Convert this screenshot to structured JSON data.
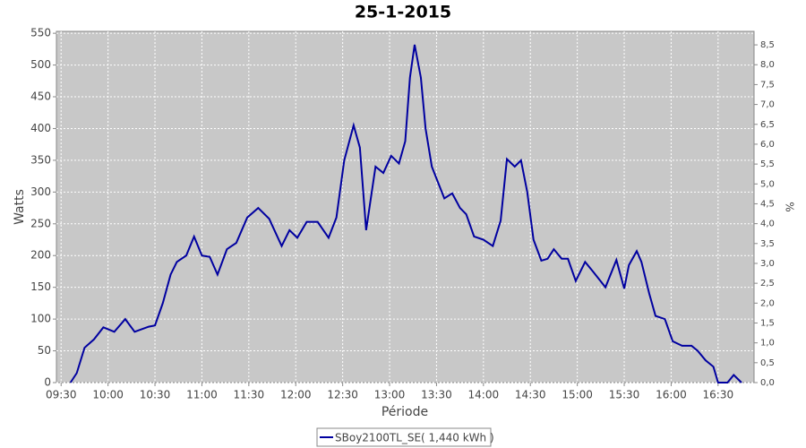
{
  "chart_data": {
    "type": "line",
    "title": "25-1-2015",
    "x_label": "Période",
    "y_label": "Watts",
    "y2_label": "%",
    "x": [
      "09:36",
      "09:40",
      "09:45",
      "09:51",
      "09:57",
      "10:04",
      "10:11",
      "10:17",
      "10:26",
      "10:30",
      "10:35",
      "10:40",
      "10:44",
      "10:50",
      "10:55",
      "11:00",
      "11:05",
      "11:10",
      "11:16",
      "11:22",
      "11:29",
      "11:36",
      "11:43",
      "11:51",
      "11:56",
      "12:01",
      "12:07",
      "12:14",
      "12:21",
      "12:26",
      "12:31",
      "12:37",
      "12:41",
      "12:45",
      "12:51",
      "12:56",
      "13:01",
      "13:06",
      "13:10",
      "13:13",
      "13:16",
      "13:20",
      "13:23",
      "13:27",
      "13:31",
      "13:35",
      "13:40",
      "13:45",
      "13:49",
      "13:54",
      "14:00",
      "14:06",
      "14:11",
      "14:15",
      "14:20",
      "14:24",
      "14:28",
      "14:32",
      "14:37",
      "14:41",
      "14:45",
      "14:50",
      "14:54",
      "14:59",
      "15:05",
      "15:10",
      "15:18",
      "15:25",
      "15:30",
      "15:33",
      "15:38",
      "15:41",
      "15:46",
      "15:50",
      "15:56",
      "16:01",
      "16:07",
      "16:13",
      "16:17",
      "16:22",
      "16:27",
      "16:30",
      "16:36",
      "16:40",
      "16:45"
    ],
    "series": [
      {
        "name": "SBoy2100TL_SE( 1,440 kWh )",
        "color": "#0000a0",
        "axis": "y",
        "values": [
          0,
          15,
          55,
          68,
          87,
          80,
          100,
          80,
          88,
          90,
          125,
          170,
          190,
          200,
          230,
          200,
          198,
          170,
          210,
          220,
          260,
          275,
          258,
          215,
          240,
          228,
          253,
          253,
          228,
          260,
          350,
          405,
          370,
          240,
          340,
          330,
          357,
          345,
          380,
          480,
          532,
          480,
          400,
          340,
          315,
          290,
          298,
          275,
          265,
          230,
          225,
          215,
          255,
          352,
          340,
          350,
          300,
          225,
          192,
          195,
          210,
          195,
          195,
          160,
          190,
          175,
          150,
          193,
          148,
          185,
          207,
          190,
          140,
          105,
          100,
          65,
          58,
          58,
          50,
          35,
          25,
          0,
          0,
          12,
          0
        ]
      }
    ],
    "xlim": [
      "09:27",
      "16:53"
    ],
    "xticks": [
      "09:30",
      "10:00",
      "10:30",
      "11:00",
      "11:30",
      "12:00",
      "12:30",
      "13:00",
      "13:30",
      "14:00",
      "14:30",
      "15:00",
      "15:30",
      "16:00",
      "16:30"
    ],
    "ylim": [
      0,
      553
    ],
    "yticks": [
      0,
      50,
      100,
      150,
      200,
      250,
      300,
      350,
      400,
      450,
      500,
      550
    ],
    "y2lim": [
      0,
      8.84
    ],
    "y2ticks": [
      {
        "value": 0,
        "label": "0,0"
      },
      {
        "value": 0.5,
        "label": "0,5"
      },
      {
        "value": 1,
        "label": "1,0"
      },
      {
        "value": 1.5,
        "label": "1,5"
      },
      {
        "value": 2,
        "label": "2,0"
      },
      {
        "value": 2.5,
        "label": "2,5"
      },
      {
        "value": 3,
        "label": "3,0"
      },
      {
        "value": 3.5,
        "label": "3,5"
      },
      {
        "value": 4,
        "label": "4,0"
      },
      {
        "value": 4.5,
        "label": "4,5"
      },
      {
        "value": 5,
        "label": "5,0"
      },
      {
        "value": 5.5,
        "label": "5,5"
      },
      {
        "value": 6,
        "label": "6,0"
      },
      {
        "value": 6.5,
        "label": "6,5"
      },
      {
        "value": 7,
        "label": "7,0"
      },
      {
        "value": 7.5,
        "label": "7,5"
      },
      {
        "value": 8,
        "label": "8,0"
      },
      {
        "value": 8.5,
        "label": "8,5"
      }
    ],
    "grid": true
  }
}
